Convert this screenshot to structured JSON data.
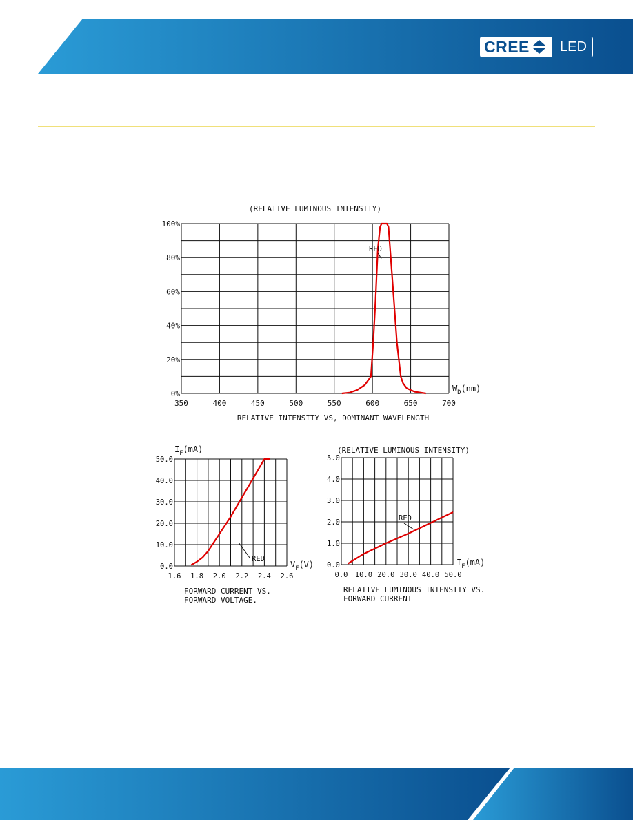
{
  "brand": {
    "logo_text": "CREE",
    "logo_suffix": "LED"
  },
  "colors": {
    "header_blue_light": "#2a9bd6",
    "header_blue_dark": "#0a4f8f",
    "curve": "#e00000",
    "divider": "#f0e07a"
  },
  "chart_data": [
    {
      "type": "line",
      "title": "(RELATIVE LUMINOUS INTENSITY)",
      "caption": [
        "RELATIVE INTENSITY  VS, DOMINANT WAVELENGTH"
      ],
      "xlabel": "W",
      "xlabel_sub": "D",
      "xlabel_unit": "(nm)",
      "ylabel": "",
      "xlim": [
        350,
        700
      ],
      "ylim": [
        0,
        100
      ],
      "x_ticks": [
        "350",
        "400",
        "450",
        "500",
        "550",
        "600",
        "650",
        "700"
      ],
      "y_ticks": [
        "0%",
        "20%",
        "40%",
        "60%",
        "80%",
        "100%"
      ],
      "grid": true,
      "series": [
        {
          "name": "RED",
          "x": [
            560,
            570,
            580,
            590,
            598,
            601,
            604,
            607,
            610,
            612,
            614,
            619,
            621,
            624,
            628,
            632,
            637,
            640,
            645,
            655,
            670
          ],
          "values": [
            0,
            0.5,
            2,
            5,
            10,
            30,
            55,
            85,
            98,
            100,
            100,
            100,
            98,
            80,
            55,
            30,
            10,
            6,
            3,
            1,
            0
          ]
        }
      ]
    },
    {
      "type": "line",
      "title": "",
      "caption": [
        "FORWARD CURRENT VS.",
        "FORWARD VOLTAGE."
      ],
      "ylabel": "I",
      "ylabel_sub": "F",
      "ylabel_unit": "(mA)",
      "xlabel": "V",
      "xlabel_sub": "F",
      "xlabel_unit": "(V)",
      "xlim": [
        1.6,
        2.6
      ],
      "ylim": [
        0,
        50
      ],
      "x_ticks": [
        "1.6",
        "1.8",
        "2.0",
        "2.2",
        "2.4",
        "2.6"
      ],
      "y_ticks": [
        "0.0",
        "10.0",
        "20.0",
        "30.0",
        "40.0",
        "50.0"
      ],
      "grid": true,
      "series": [
        {
          "name": "RED",
          "x": [
            1.75,
            1.8,
            1.85,
            1.9,
            1.95,
            2.0,
            2.1,
            2.2,
            2.3,
            2.4,
            2.45
          ],
          "values": [
            0.5,
            2,
            4,
            7,
            11,
            15,
            23,
            32,
            41,
            50,
            50
          ]
        }
      ]
    },
    {
      "type": "line",
      "title": "(RELATIVE LUMINOUS INTENSITY)",
      "caption": [
        "RELATIVE LUMINOUS INTENSITY VS.",
        "FORWARD CURRENT"
      ],
      "ylabel": "",
      "xlabel": "I",
      "xlabel_sub": "F",
      "xlabel_unit": "(mA)",
      "xlim": [
        0,
        50
      ],
      "ylim": [
        0,
        5
      ],
      "x_ticks": [
        "0.0",
        "10.0",
        "20.0",
        "30.0",
        "40.0",
        "50.0"
      ],
      "y_ticks": [
        "0.0",
        "1.0",
        "2.0",
        "3.0",
        "4.0",
        "5.0"
      ],
      "grid": true,
      "series": [
        {
          "name": "RED",
          "x": [
            3,
            10,
            20,
            30,
            40,
            50
          ],
          "values": [
            0.05,
            0.5,
            1.0,
            1.45,
            1.95,
            2.45
          ]
        }
      ]
    }
  ]
}
